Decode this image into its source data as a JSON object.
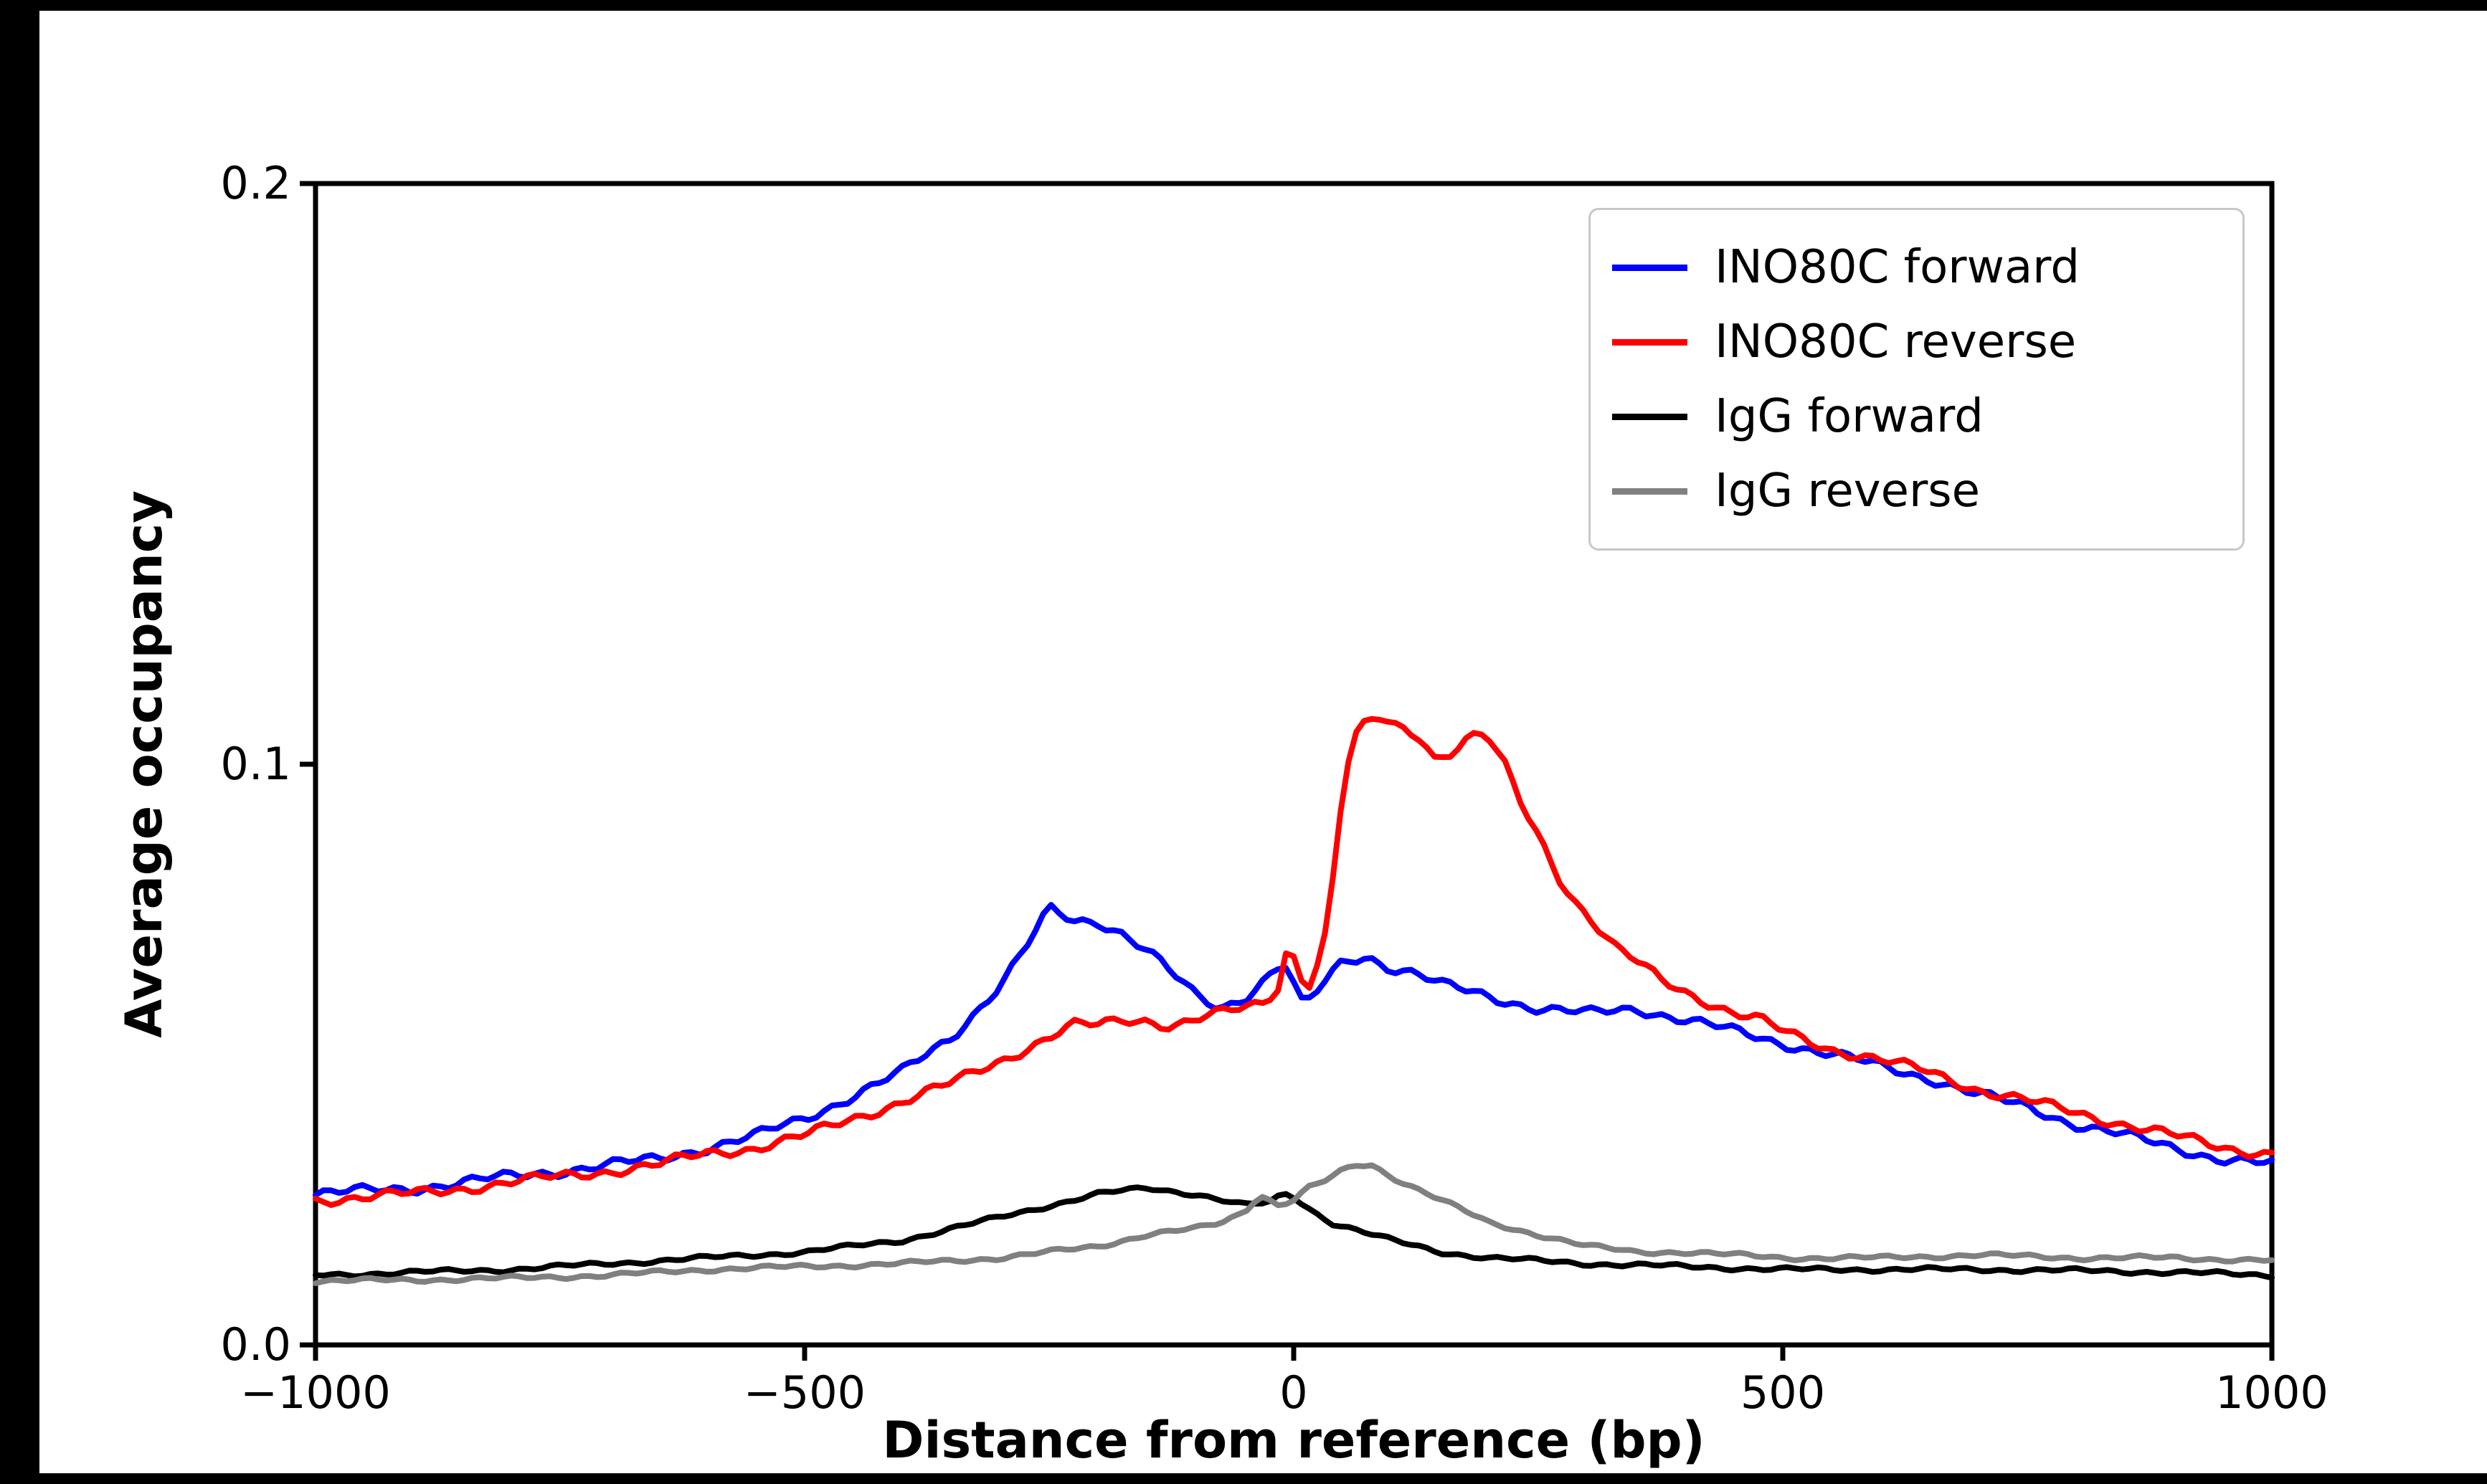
{
  "colors": {
    "outer_background": "#000000",
    "figure_background": "#ffffff",
    "axis": "#000000",
    "legend_border": "#c8c8c8"
  },
  "chart_data": {
    "type": "line",
    "title": "",
    "xlabel": "Distance from reference (bp)",
    "ylabel": "Average occupancy",
    "xlim": [
      -1000,
      1000
    ],
    "ylim": [
      0,
      0.2
    ],
    "grid": false,
    "legend_position": "upper right",
    "xticks": {
      "values": [
        -1000,
        -500,
        0,
        500,
        1000
      ],
      "labels": [
        "−1000",
        "−500",
        "0",
        "500",
        "1000"
      ]
    },
    "yticks": {
      "values": [
        0,
        0.1,
        0.2
      ],
      "labels": [
        "0.0",
        "0.1",
        "0.2"
      ]
    },
    "series": [
      {
        "name": "INO80C forward",
        "color": "#0000ff",
        "points": [
          [
            -1000,
            0.026
          ],
          [
            -950,
            0.0265
          ],
          [
            -900,
            0.027
          ],
          [
            -850,
            0.028
          ],
          [
            -800,
            0.029
          ],
          [
            -750,
            0.03
          ],
          [
            -700,
            0.031
          ],
          [
            -650,
            0.032
          ],
          [
            -600,
            0.034
          ],
          [
            -550,
            0.036
          ],
          [
            -500,
            0.039
          ],
          [
            -450,
            0.043
          ],
          [
            -400,
            0.047
          ],
          [
            -350,
            0.053
          ],
          [
            -300,
            0.062
          ],
          [
            -275,
            0.068
          ],
          [
            -250,
            0.075
          ],
          [
            -225,
            0.073
          ],
          [
            -200,
            0.073
          ],
          [
            -175,
            0.071
          ],
          [
            -150,
            0.068
          ],
          [
            -125,
            0.064
          ],
          [
            -100,
            0.06
          ],
          [
            -75,
            0.058
          ],
          [
            -50,
            0.06
          ],
          [
            -30,
            0.063
          ],
          [
            -10,
            0.066
          ],
          [
            0,
            0.062
          ],
          [
            10,
            0.058
          ],
          [
            25,
            0.061
          ],
          [
            50,
            0.066
          ],
          [
            75,
            0.067
          ],
          [
            100,
            0.065
          ],
          [
            125,
            0.064
          ],
          [
            150,
            0.062
          ],
          [
            200,
            0.06
          ],
          [
            250,
            0.058
          ],
          [
            300,
            0.057
          ],
          [
            350,
            0.058
          ],
          [
            400,
            0.056
          ],
          [
            450,
            0.054
          ],
          [
            500,
            0.052
          ],
          [
            550,
            0.05
          ],
          [
            600,
            0.048
          ],
          [
            650,
            0.046
          ],
          [
            700,
            0.043
          ],
          [
            750,
            0.041
          ],
          [
            800,
            0.038
          ],
          [
            850,
            0.036
          ],
          [
            900,
            0.034
          ],
          [
            950,
            0.032
          ],
          [
            1000,
            0.031
          ]
        ]
      },
      {
        "name": "INO80C reverse",
        "color": "#ff0000",
        "points": [
          [
            -1000,
            0.025
          ],
          [
            -950,
            0.0255
          ],
          [
            -900,
            0.026
          ],
          [
            -850,
            0.027
          ],
          [
            -800,
            0.028
          ],
          [
            -750,
            0.029
          ],
          [
            -700,
            0.03
          ],
          [
            -650,
            0.031
          ],
          [
            -600,
            0.033
          ],
          [
            -550,
            0.034
          ],
          [
            -500,
            0.036
          ],
          [
            -450,
            0.039
          ],
          [
            -400,
            0.042
          ],
          [
            -350,
            0.045
          ],
          [
            -300,
            0.049
          ],
          [
            -250,
            0.053
          ],
          [
            -225,
            0.055
          ],
          [
            -200,
            0.055
          ],
          [
            -175,
            0.056
          ],
          [
            -150,
            0.056
          ],
          [
            -125,
            0.055
          ],
          [
            -100,
            0.056
          ],
          [
            -75,
            0.057
          ],
          [
            -50,
            0.058
          ],
          [
            -30,
            0.059
          ],
          [
            -15,
            0.062
          ],
          [
            -5,
            0.07
          ],
          [
            5,
            0.064
          ],
          [
            15,
            0.062
          ],
          [
            30,
            0.068
          ],
          [
            40,
            0.08
          ],
          [
            50,
            0.095
          ],
          [
            60,
            0.104
          ],
          [
            75,
            0.107
          ],
          [
            90,
            0.108
          ],
          [
            100,
            0.107
          ],
          [
            115,
            0.106
          ],
          [
            130,
            0.105
          ],
          [
            145,
            0.101
          ],
          [
            160,
            0.102
          ],
          [
            175,
            0.104
          ],
          [
            190,
            0.105
          ],
          [
            200,
            0.104
          ],
          [
            215,
            0.1
          ],
          [
            230,
            0.094
          ],
          [
            250,
            0.088
          ],
          [
            270,
            0.081
          ],
          [
            290,
            0.076
          ],
          [
            310,
            0.072
          ],
          [
            330,
            0.068
          ],
          [
            350,
            0.066
          ],
          [
            375,
            0.063
          ],
          [
            400,
            0.061
          ],
          [
            425,
            0.059
          ],
          [
            450,
            0.057
          ],
          [
            475,
            0.056
          ],
          [
            500,
            0.054
          ],
          [
            550,
            0.051
          ],
          [
            600,
            0.049
          ],
          [
            650,
            0.047
          ],
          [
            700,
            0.044
          ],
          [
            750,
            0.042
          ],
          [
            800,
            0.04
          ],
          [
            850,
            0.038
          ],
          [
            900,
            0.036
          ],
          [
            950,
            0.034
          ],
          [
            1000,
            0.033
          ]
        ]
      },
      {
        "name": "IgG forward",
        "color": "#000000",
        "points": [
          [
            -1000,
            0.012
          ],
          [
            -900,
            0.0125
          ],
          [
            -800,
            0.013
          ],
          [
            -700,
            0.014
          ],
          [
            -600,
            0.015
          ],
          [
            -500,
            0.016
          ],
          [
            -450,
            0.017
          ],
          [
            -400,
            0.018
          ],
          [
            -350,
            0.02
          ],
          [
            -300,
            0.022
          ],
          [
            -250,
            0.024
          ],
          [
            -200,
            0.026
          ],
          [
            -150,
            0.027
          ],
          [
            -125,
            0.0265
          ],
          [
            -100,
            0.026
          ],
          [
            -75,
            0.025
          ],
          [
            -50,
            0.024
          ],
          [
            -25,
            0.0245
          ],
          [
            -10,
            0.026
          ],
          [
            0,
            0.0255
          ],
          [
            20,
            0.023
          ],
          [
            40,
            0.021
          ],
          [
            60,
            0.02
          ],
          [
            100,
            0.018
          ],
          [
            150,
            0.016
          ],
          [
            200,
            0.015
          ],
          [
            250,
            0.0145
          ],
          [
            300,
            0.014
          ],
          [
            400,
            0.0135
          ],
          [
            500,
            0.013
          ],
          [
            600,
            0.013
          ],
          [
            700,
            0.013
          ],
          [
            800,
            0.0128
          ],
          [
            900,
            0.0125
          ],
          [
            1000,
            0.012
          ]
        ]
      },
      {
        "name": "IgG reverse",
        "color": "#808080",
        "points": [
          [
            -1000,
            0.011
          ],
          [
            -900,
            0.0112
          ],
          [
            -800,
            0.0115
          ],
          [
            -700,
            0.012
          ],
          [
            -600,
            0.013
          ],
          [
            -500,
            0.0135
          ],
          [
            -400,
            0.014
          ],
          [
            -350,
            0.0145
          ],
          [
            -300,
            0.015
          ],
          [
            -250,
            0.016
          ],
          [
            -200,
            0.017
          ],
          [
            -150,
            0.019
          ],
          [
            -100,
            0.02
          ],
          [
            -75,
            0.021
          ],
          [
            -50,
            0.023
          ],
          [
            -35,
            0.026
          ],
          [
            -25,
            0.025
          ],
          [
            -15,
            0.024
          ],
          [
            0,
            0.025
          ],
          [
            15,
            0.027
          ],
          [
            30,
            0.028
          ],
          [
            50,
            0.03
          ],
          [
            65,
            0.031
          ],
          [
            80,
            0.031
          ],
          [
            100,
            0.029
          ],
          [
            125,
            0.027
          ],
          [
            150,
            0.025
          ],
          [
            175,
            0.023
          ],
          [
            200,
            0.021
          ],
          [
            250,
            0.019
          ],
          [
            300,
            0.017
          ],
          [
            350,
            0.016
          ],
          [
            400,
            0.016
          ],
          [
            450,
            0.0155
          ],
          [
            500,
            0.015
          ],
          [
            600,
            0.015
          ],
          [
            700,
            0.0155
          ],
          [
            800,
            0.015
          ],
          [
            900,
            0.015
          ],
          [
            1000,
            0.0145
          ]
        ]
      }
    ]
  }
}
